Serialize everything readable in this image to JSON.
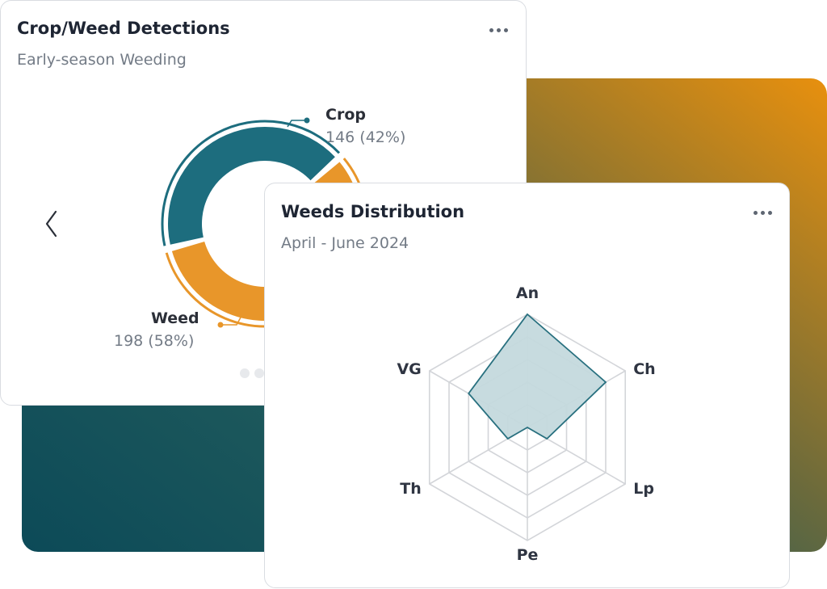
{
  "colors": {
    "crop": "#1d6d7e",
    "weed": "#e8962a",
    "radar_fill": "#c4d9dd",
    "radar_stroke": "#28707f",
    "backdrop_start": "#e8900e",
    "backdrop_end": "#0c4a58"
  },
  "detections_card": {
    "title": "Crop/Weed Detections",
    "subtitle": "Early-season Weeding",
    "menu_icon": "more-horizontal-icon",
    "prev_icon": "chevron-left-icon",
    "crop_label": "Crop",
    "crop_value": "146 (42%)",
    "weed_label": "Weed",
    "weed_value": "198 (58%)",
    "carousel_pages": 2
  },
  "distribution_card": {
    "title": "Weeds Distribution",
    "subtitle": "April - June 2024",
    "menu_icon": "more-horizontal-icon"
  },
  "chart_data": [
    {
      "type": "pie",
      "variant": "donut",
      "categories": [
        "Crop",
        "Weed"
      ],
      "values": [
        146,
        198
      ],
      "percent_labels": [
        "42%",
        "58%"
      ]
    },
    {
      "type": "radar",
      "axes": [
        "An",
        "Ch",
        "Lp",
        "Pe",
        "Th",
        "VG"
      ],
      "values": [
        5,
        4,
        1,
        0,
        1,
        3
      ],
      "max": 5,
      "rings": 5
    }
  ]
}
